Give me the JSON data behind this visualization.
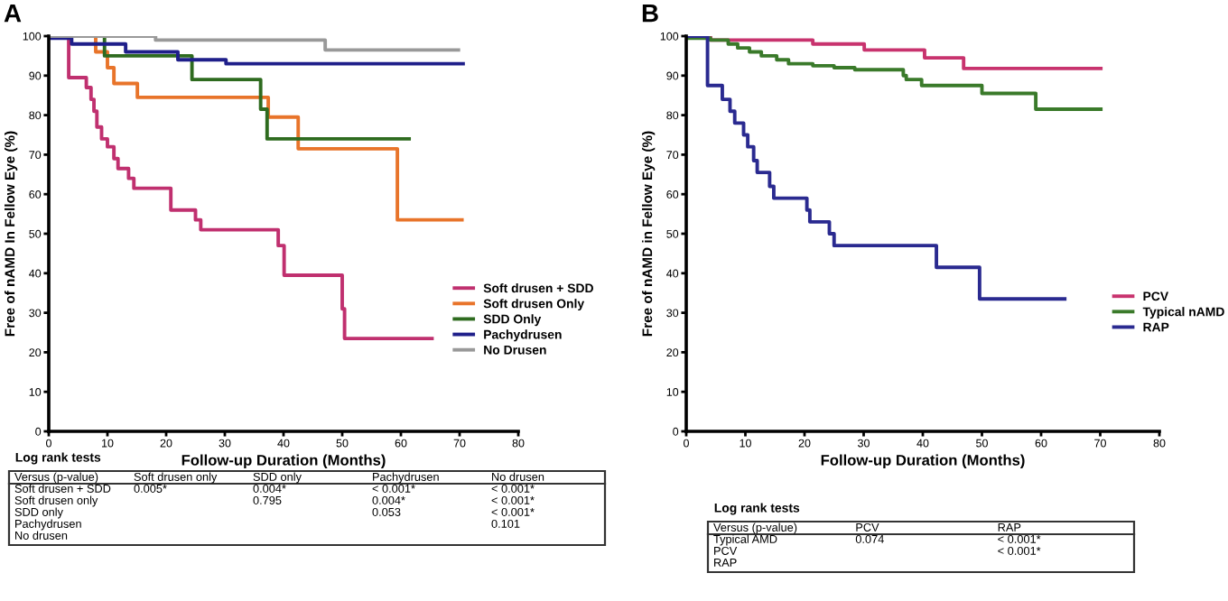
{
  "chart_data": [
    {
      "type": "step",
      "title": "A",
      "xlabel": "Follow-up Duration (Months)",
      "ylabel": "Free of nAMD In Fellow Eye (%)",
      "xlim": [
        0,
        80
      ],
      "ylim": [
        0,
        100
      ],
      "xticks": [
        0,
        10,
        20,
        30,
        40,
        50,
        60,
        70,
        80
      ],
      "yticks": [
        0,
        10,
        20,
        30,
        40,
        50,
        60,
        70,
        80,
        90,
        100
      ],
      "legend": "bottom right",
      "grid": false,
      "marker": "none",
      "line_style": "solid",
      "series": [
        {
          "name": "Soft drusen + SDD",
          "color": "#c0306f",
          "x": [
            0,
            3.4,
            6.4,
            7.2,
            7.7,
            8.2,
            9,
            10,
            11.1,
            11.8,
            13.6,
            14.5,
            20.8,
            25,
            25.9,
            39.1,
            40.1,
            50,
            50.4,
            65.3
          ],
          "values": [
            100,
            89.5,
            87,
            84,
            81,
            77,
            74,
            72,
            69,
            66.5,
            64,
            61.5,
            56,
            53.5,
            51,
            47,
            39.5,
            31,
            23.5,
            23.5
          ]
        },
        {
          "name": "Soft drusen Only",
          "color": "#e8742a",
          "x": [
            0,
            8,
            10,
            11.1,
            15.1,
            37.4,
            42.5,
            59.4,
            70.4
          ],
          "values": [
            100,
            96,
            92,
            88,
            84.5,
            79.5,
            71.5,
            53.5,
            53.5
          ]
        },
        {
          "name": "SDD Only",
          "color": "#2e6b1f",
          "x": [
            0,
            9.5,
            24.4,
            36.1,
            37.2,
            61.4
          ],
          "values": [
            100,
            95,
            89,
            81.5,
            74,
            74
          ]
        },
        {
          "name": "Pachydrusen",
          "color": "#1f1f8a",
          "x": [
            0,
            3.9,
            13.1,
            22,
            30.2,
            70.6
          ],
          "values": [
            99.5,
            98,
            96,
            94,
            93,
            93
          ]
        },
        {
          "name": "No Drusen",
          "color": "#999999",
          "x": [
            0,
            18.2,
            47.1,
            69.8
          ],
          "values": [
            100,
            99,
            96.5,
            96.5
          ]
        }
      ],
      "annotations": [
        "Log rank tests",
        "Versus (p-value)\tSoft drusen only\tSDD only\tPachydrusen\tNo drusen",
        "Soft drusen + SDD\t0.005*\t0.004*\t< 0.001*\t< 0.001*",
        "Soft drusen only\t\t0.795\t0.004*\t< 0.001*",
        "SDD only\t\t\t0.053\t< 0.001*",
        "Pachydrusen\t\t\t\t0.101",
        "No drusen\t\t\t\t"
      ]
    },
    {
      "type": "step",
      "title": "B",
      "xlabel": "Follow-up Duration (Months)",
      "ylabel": "Free of nAMD in Fellow Eye (%)",
      "xlim": [
        0,
        80
      ],
      "ylim": [
        0,
        100
      ],
      "xticks": [
        0,
        10,
        20,
        30,
        40,
        50,
        60,
        70,
        80
      ],
      "yticks": [
        0,
        10,
        20,
        30,
        40,
        50,
        60,
        70,
        80,
        90,
        100
      ],
      "legend": "right",
      "grid": false,
      "marker": "none",
      "line_style": "solid",
      "series": [
        {
          "name": "PCV",
          "color": "#c8336e",
          "x": [
            0,
            4.1,
            21.4,
            30.1,
            40.3,
            46.9,
            70.1
          ],
          "values": [
            100,
            99,
            98,
            96.5,
            94.5,
            91.8,
            91.8
          ]
        },
        {
          "name": "Typical nAMD",
          "color": "#3a7a2a",
          "x": [
            0,
            4.1,
            7.1,
            8.7,
            10.7,
            12.7,
            15.3,
            17.3,
            21.4,
            25,
            28.5,
            36.7,
            37.2,
            39.8,
            50,
            59.1,
            70.1
          ],
          "values": [
            99.5,
            99,
            98,
            97,
            96,
            95,
            94,
            93,
            92.5,
            92,
            91.5,
            90,
            89,
            87.5,
            85.5,
            81.5,
            81.5
          ]
        },
        {
          "name": "RAP",
          "color": "#2a2a90",
          "x": [
            0,
            3.6,
            6.1,
            7.4,
            8.2,
            9.7,
            10.4,
            11.4,
            12,
            14.1,
            14.8,
            20.4,
            20.9,
            24.2,
            25,
            42.3,
            49.6,
            64
          ],
          "values": [
            100,
            87.5,
            84,
            81,
            78,
            75,
            72,
            68.5,
            65.5,
            62,
            59,
            56,
            53,
            50,
            47,
            41.5,
            33.5,
            33.5
          ]
        }
      ],
      "annotations": [
        "Log rank tests",
        "Versus (p-value)\tPCV\tRAP",
        "Typical AMD\t0.074\t< 0.001*",
        "PCV\t\t< 0.001*",
        "RAP\t\t"
      ]
    }
  ]
}
